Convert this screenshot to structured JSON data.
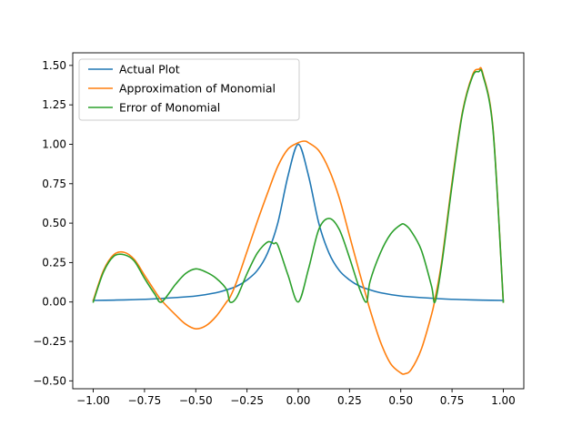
{
  "chart_data": {
    "type": "line",
    "title": "",
    "xlabel": "",
    "ylabel": "",
    "xlim": [
      -1.1,
      1.1
    ],
    "ylim": [
      -0.55,
      1.58
    ],
    "grid": false,
    "legend_position": "top-left",
    "x_ticks": [
      -1.0,
      -0.75,
      -0.5,
      -0.25,
      0.0,
      0.25,
      0.5,
      0.75,
      1.0
    ],
    "x_tick_labels": [
      "−1.00",
      "−0.75",
      "−0.50",
      "−0.25",
      "0.00",
      "0.25",
      "0.50",
      "0.75",
      "1.00"
    ],
    "y_ticks": [
      -0.5,
      -0.25,
      0.0,
      0.25,
      0.5,
      0.75,
      1.0,
      1.25,
      1.5
    ],
    "y_tick_labels": [
      "−0.50",
      "−0.25",
      "0.00",
      "0.25",
      "0.50",
      "0.75",
      "1.00",
      "1.25",
      "1.50"
    ],
    "series": [
      {
        "name": "Actual Plot",
        "color": "#1f77b4",
        "x": [
          -1.0,
          -0.9,
          -0.8,
          -0.7,
          -0.6,
          -0.5,
          -0.4,
          -0.35,
          -0.3,
          -0.25,
          -0.2,
          -0.15,
          -0.1,
          -0.05,
          0.0,
          0.05,
          0.1,
          0.15,
          0.2,
          0.25,
          0.3,
          0.35,
          0.4,
          0.5,
          0.6,
          0.7,
          0.8,
          0.9,
          1.0
        ],
        "y": [
          0.01,
          0.012,
          0.015,
          0.02,
          0.028,
          0.038,
          0.059,
          0.077,
          0.1,
          0.14,
          0.2,
          0.31,
          0.5,
          0.8,
          1.0,
          0.8,
          0.5,
          0.31,
          0.2,
          0.14,
          0.1,
          0.077,
          0.059,
          0.038,
          0.028,
          0.02,
          0.015,
          0.012,
          0.01
        ]
      },
      {
        "name": "Approximation of Monomial",
        "color": "#ff7f0e",
        "x": [
          -1.0,
          -0.95,
          -0.9,
          -0.85,
          -0.8,
          -0.75,
          -0.7,
          -0.667,
          -0.6,
          -0.55,
          -0.5,
          -0.45,
          -0.4,
          -0.35,
          -0.333,
          -0.3,
          -0.25,
          -0.2,
          -0.15,
          -0.1,
          -0.05,
          0.0,
          0.03,
          0.05,
          0.1,
          0.15,
          0.2,
          0.25,
          0.3,
          0.333,
          0.35,
          0.4,
          0.45,
          0.5,
          0.52,
          0.55,
          0.6,
          0.65,
          0.667,
          0.7,
          0.75,
          0.8,
          0.85,
          0.88,
          0.9,
          0.95,
          1.0
        ],
        "y": [
          0.01,
          0.2,
          0.3,
          0.315,
          0.27,
          0.17,
          0.07,
          0.01,
          -0.08,
          -0.14,
          -0.17,
          -0.15,
          -0.09,
          0.0,
          0.03,
          0.13,
          0.32,
          0.51,
          0.69,
          0.86,
          0.97,
          1.01,
          1.02,
          1.01,
          0.96,
          0.84,
          0.66,
          0.42,
          0.18,
          0.03,
          -0.05,
          -0.25,
          -0.39,
          -0.45,
          -0.455,
          -0.43,
          -0.3,
          -0.08,
          0.02,
          0.26,
          0.76,
          1.2,
          1.44,
          1.475,
          1.45,
          1.1,
          0.0
        ]
      },
      {
        "name": "Error of Monomial",
        "color": "#2ca02c",
        "x": [
          -1.0,
          -0.95,
          -0.9,
          -0.85,
          -0.8,
          -0.75,
          -0.7,
          -0.667,
          -0.6,
          -0.55,
          -0.5,
          -0.45,
          -0.4,
          -0.35,
          -0.333,
          -0.3,
          -0.25,
          -0.2,
          -0.15,
          -0.12,
          -0.1,
          -0.05,
          0.0,
          0.05,
          0.1,
          0.15,
          0.2,
          0.25,
          0.3,
          0.333,
          0.35,
          0.4,
          0.45,
          0.5,
          0.52,
          0.55,
          0.6,
          0.65,
          0.667,
          0.7,
          0.75,
          0.8,
          0.85,
          0.88,
          0.9,
          0.95,
          1.0
        ],
        "y": [
          0.0,
          0.19,
          0.29,
          0.3,
          0.26,
          0.15,
          0.05,
          0.0,
          0.11,
          0.18,
          0.21,
          0.19,
          0.15,
          0.08,
          0.0,
          0.03,
          0.18,
          0.31,
          0.38,
          0.37,
          0.36,
          0.17,
          0.0,
          0.21,
          0.46,
          0.53,
          0.46,
          0.28,
          0.08,
          0.0,
          0.13,
          0.31,
          0.43,
          0.49,
          0.49,
          0.45,
          0.33,
          0.1,
          0.0,
          0.24,
          0.74,
          1.19,
          1.43,
          1.46,
          1.44,
          1.09,
          0.0
        ]
      }
    ]
  }
}
